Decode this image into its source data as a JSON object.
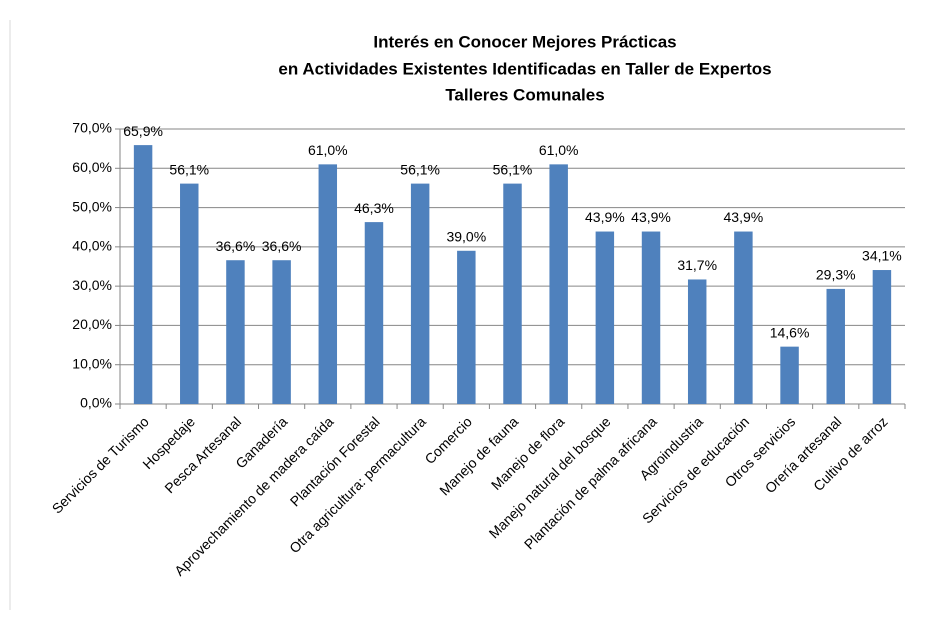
{
  "chart_data": {
    "type": "bar",
    "title": [
      "Interés en Conocer Mejores Prácticas",
      "en Actividades Existentes Identificadas en Taller de Expertos",
      "Talleres Comunales"
    ],
    "categories": [
      "Servicios de Turismo",
      "Hospedaje",
      "Pesca Artesanal",
      "Ganadería",
      "Aprovechamiento de madera caída",
      "Plantación Forestal",
      "Otra agricultura: permacultura",
      "Comercio",
      "Manejo de fauna",
      "Manejo de flora",
      "Manejo natural del bosque",
      "Plantación de palma africana",
      "Agroindustria",
      "Servicios de educación",
      "Otros servicios",
      "Orería artesanal",
      "Cultivo de arroz"
    ],
    "values": [
      65.9,
      56.1,
      36.6,
      36.6,
      61.0,
      46.3,
      56.1,
      39.0,
      56.1,
      61.0,
      43.9,
      43.9,
      31.7,
      43.9,
      14.6,
      29.3,
      34.1
    ],
    "value_labels": [
      "65,9%",
      "56,1%",
      "36,6%",
      "36,6%",
      "61,0%",
      "46,3%",
      "56,1%",
      "39,0%",
      "56,1%",
      "61,0%",
      "43,9%",
      "43,9%",
      "31,7%",
      "43,9%",
      "14,6%",
      "29,3%",
      "34,1%"
    ],
    "color": "#4f81bd",
    "ylim": [
      0,
      70
    ],
    "yticks": [
      {
        "value": 0,
        "label": "0,0%"
      },
      {
        "value": 10,
        "label": "10,0%"
      },
      {
        "value": 20,
        "label": "20,0%"
      },
      {
        "value": 30,
        "label": "30,0%"
      },
      {
        "value": 40,
        "label": "40,0%"
      },
      {
        "value": 50,
        "label": "50,0%"
      },
      {
        "value": 60,
        "label": "60,0%"
      },
      {
        "value": 70,
        "label": "70,0%"
      }
    ],
    "grid": true
  }
}
